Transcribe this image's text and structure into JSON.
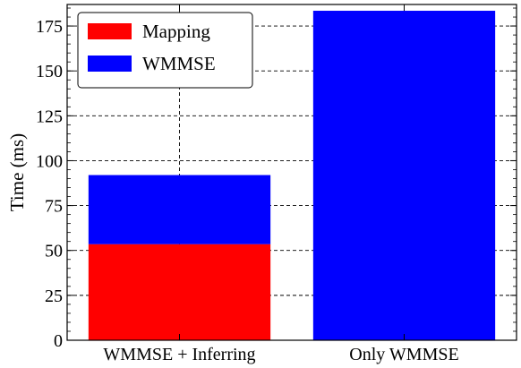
{
  "chart_data": {
    "type": "bar",
    "stacked": true,
    "categories": [
      "WMMSE + Inferring",
      "Only WMMSE"
    ],
    "series": [
      {
        "name": "Mapping",
        "color": "#ff0000",
        "values": [
          53.5,
          0
        ]
      },
      {
        "name": "WMMSE",
        "color": "#0000ff",
        "values": [
          38.5,
          183.5
        ]
      }
    ],
    "title": "",
    "xlabel": "",
    "ylabel": "Time (ms)",
    "ylim": [
      0,
      187
    ],
    "yticks": [
      0,
      25,
      50,
      75,
      100,
      125,
      150,
      175
    ],
    "ytick_labels": [
      "0",
      "25",
      "50",
      "75",
      "100",
      "125",
      "150",
      "175"
    ],
    "grid": true,
    "grid_style": "dashed",
    "legend_placement": "top-left"
  }
}
